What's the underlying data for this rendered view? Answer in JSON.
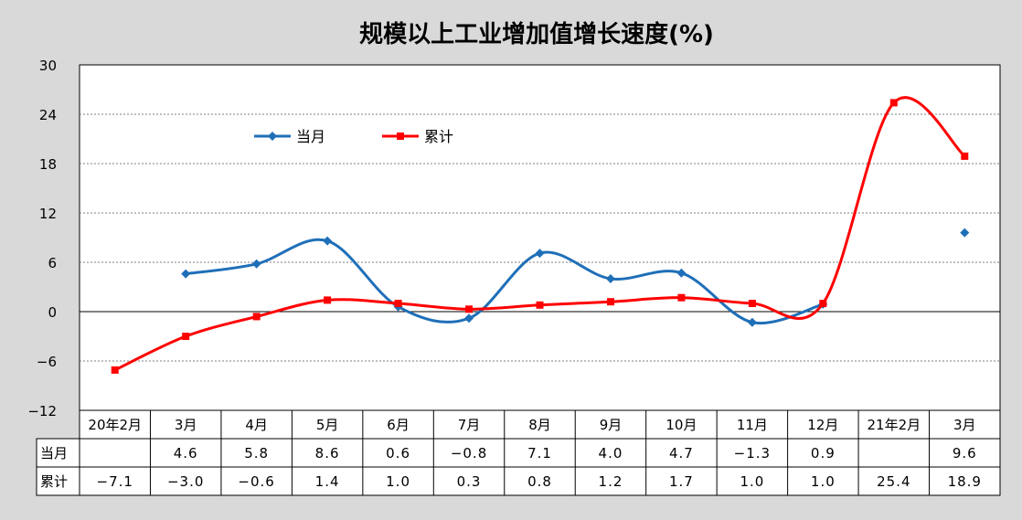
{
  "chart_data": {
    "type": "line",
    "title": "规模以上工业增加值增长速度(%)",
    "categories": [
      "20年2月",
      "3月",
      "4月",
      "5月",
      "6月",
      "7月",
      "8月",
      "9月",
      "10月",
      "11月",
      "12月",
      "21年2月",
      "3月"
    ],
    "series": [
      {
        "name": "当月",
        "color": "#1f6fb8",
        "marker": "diamond",
        "values": [
          null,
          4.6,
          5.8,
          8.6,
          0.6,
          -0.8,
          7.1,
          4.0,
          4.7,
          -1.3,
          0.9,
          null,
          9.6
        ]
      },
      {
        "name": "累计",
        "color": "#ff0000",
        "marker": "square",
        "values": [
          -7.1,
          -3.0,
          -0.6,
          1.4,
          1.0,
          0.3,
          0.8,
          1.2,
          1.7,
          1.0,
          1.0,
          25.4,
          18.9
        ]
      }
    ],
    "table_values": {
      "当月": [
        "",
        "4.6",
        "5.8",
        "8.6",
        "0.6",
        "−0.8",
        "7.1",
        "4.0",
        "4.7",
        "−1.3",
        "0.9",
        "",
        "9.6"
      ],
      "累计": [
        "−7.1",
        "−3.0",
        "−0.6",
        "1.4",
        "1.0",
        "0.3",
        "0.8",
        "1.2",
        "1.7",
        "1.0",
        "1.0",
        "25.4",
        "18.9"
      ]
    },
    "y_ticks": [
      "30",
      "24",
      "18",
      "12",
      "6",
      "0",
      "−6",
      "−12"
    ],
    "ylim": [
      -12,
      30
    ],
    "grid": true,
    "legend": "top-left",
    "plot_background": "#ffffff",
    "chart_background": "#d9d9d9"
  }
}
